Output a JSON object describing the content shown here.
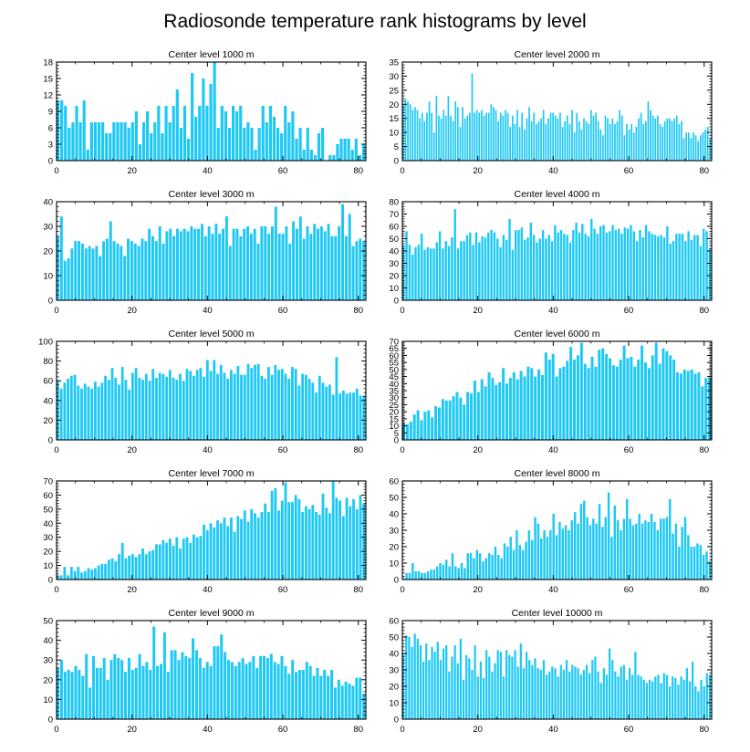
{
  "title": "Radiosonde temperature rank histograms by level",
  "chart_data": [
    {
      "type": "bar",
      "title": "Center level 1000 m",
      "ylim": [
        0,
        18
      ],
      "yticks": [
        0,
        3,
        6,
        9,
        12,
        15,
        18
      ],
      "xlim": [
        0,
        82
      ],
      "xticks": [
        0,
        20,
        40,
        60,
        80
      ],
      "xtick_labels": [
        "0",
        "20",
        "40",
        "60",
        "80"
      ],
      "values": [
        11,
        11,
        10,
        6,
        7,
        10,
        7,
        11,
        2,
        7,
        7,
        7,
        7,
        5,
        5,
        7,
        7,
        7,
        7,
        6,
        7,
        9,
        3,
        7,
        9,
        5,
        7,
        10,
        5,
        10,
        7,
        10,
        13,
        6,
        10,
        4,
        16,
        8,
        10,
        15,
        10,
        14,
        18,
        6,
        10,
        9,
        6,
        10,
        9,
        10,
        6,
        7,
        6,
        2,
        6,
        10,
        7,
        10,
        8,
        6,
        5,
        10,
        7,
        9,
        4,
        6,
        2,
        6,
        2,
        1,
        5,
        6,
        0,
        1,
        1,
        3,
        4,
        4,
        4,
        2,
        4,
        1,
        3
      ]
    },
    {
      "type": "bar",
      "title": "Center level 2000 m",
      "ylim": [
        0,
        35
      ],
      "yticks": [
        0,
        5,
        10,
        15,
        20,
        25,
        30,
        35
      ],
      "xlim": [
        0,
        82
      ],
      "xticks": [
        0,
        20,
        40,
        60,
        80
      ],
      "xtick_labels": [
        "0",
        "20",
        "40",
        "60",
        "80"
      ],
      "values": [
        20,
        22,
        21,
        20,
        18,
        19,
        18,
        15,
        17,
        14,
        17,
        21,
        17,
        10,
        23,
        16,
        15,
        18,
        16,
        23,
        16,
        14,
        21,
        19,
        12,
        19,
        15,
        16,
        17,
        31,
        17,
        18,
        17,
        18,
        16,
        17,
        17,
        20,
        19,
        18,
        14,
        17,
        16,
        18,
        17,
        12,
        16,
        13,
        18,
        12,
        17,
        11,
        15,
        19,
        14,
        17,
        13,
        14,
        15,
        18,
        13,
        15,
        17,
        17,
        16,
        15,
        17,
        12,
        14,
        16,
        13,
        18,
        10,
        17,
        14,
        11,
        15,
        14,
        13,
        18,
        16,
        17,
        14,
        11,
        9,
        16,
        15,
        13,
        15,
        13,
        14,
        18,
        16,
        9,
        13,
        11,
        13,
        10,
        12,
        15,
        17,
        13,
        14,
        21,
        18,
        16,
        15,
        16,
        13,
        12,
        14,
        15,
        15,
        14,
        15,
        16,
        13,
        14,
        8,
        10,
        10,
        8,
        10,
        9,
        7,
        9,
        10,
        11,
        12,
        8
      ]
    },
    {
      "type": "bar",
      "title": "Center level 3000 m",
      "ylim": [
        0,
        40
      ],
      "yticks": [
        0,
        10,
        20,
        30,
        40
      ],
      "xlim": [
        0,
        82
      ],
      "xticks": [
        0,
        20,
        40,
        60,
        80
      ],
      "xtick_labels": [
        "0",
        "20",
        "40",
        "60",
        "80"
      ],
      "values": [
        26,
        34,
        16,
        17,
        21,
        24,
        24,
        23,
        21,
        22,
        21,
        22,
        18,
        24,
        25,
        32,
        24,
        23,
        22,
        18,
        25,
        24,
        23,
        22,
        25,
        24,
        29,
        26,
        24,
        30,
        23,
        28,
        29,
        26,
        29,
        28,
        29,
        28,
        30,
        29,
        29,
        31,
        26,
        30,
        27,
        31,
        27,
        29,
        34,
        22,
        29,
        29,
        26,
        29,
        30,
        27,
        29,
        23,
        30,
        30,
        27,
        30,
        38,
        27,
        27,
        30,
        23,
        32,
        29,
        34,
        25,
        30,
        27,
        31,
        29,
        30,
        28,
        31,
        26,
        26,
        30,
        39,
        26,
        35,
        22,
        24,
        25,
        24
      ]
    },
    {
      "type": "bar",
      "title": "Center level 4000 m",
      "ylim": [
        0,
        80
      ],
      "yticks": [
        0,
        10,
        20,
        30,
        40,
        50,
        60,
        70,
        80
      ],
      "xlim": [
        0,
        82
      ],
      "xticks": [
        0,
        20,
        40,
        60,
        80
      ],
      "xtick_labels": [
        "0",
        "20",
        "40",
        "60",
        "80"
      ],
      "values": [
        44,
        56,
        45,
        37,
        43,
        45,
        54,
        41,
        43,
        42,
        42,
        47,
        56,
        42,
        48,
        44,
        51,
        74,
        42,
        48,
        48,
        53,
        55,
        45,
        55,
        47,
        52,
        51,
        55,
        57,
        55,
        50,
        43,
        53,
        49,
        66,
        41,
        57,
        57,
        59,
        49,
        51,
        63,
        53,
        47,
        50,
        57,
        50,
        53,
        48,
        61,
        55,
        57,
        54,
        53,
        47,
        57,
        63,
        55,
        62,
        54,
        52,
        66,
        58,
        54,
        60,
        61,
        55,
        56,
        61,
        57,
        58,
        54,
        59,
        58,
        61,
        56,
        48,
        57,
        51,
        61,
        56,
        54,
        53,
        52,
        53,
        51,
        60,
        46,
        48,
        54,
        54,
        54,
        48,
        56,
        49,
        53,
        53,
        44,
        58,
        56,
        42
      ]
    },
    {
      "type": "bar",
      "title": "Center level 5000 m",
      "ylim": [
        0,
        100
      ],
      "yticks": [
        0,
        20,
        40,
        60,
        80,
        100
      ],
      "xlim": [
        0,
        82
      ],
      "xticks": [
        0,
        20,
        40,
        60,
        80
      ],
      "xtick_labels": [
        "0",
        "20",
        "40",
        "60",
        "80"
      ],
      "values": [
        60,
        52,
        58,
        62,
        65,
        66,
        55,
        52,
        57,
        54,
        52,
        59,
        54,
        58,
        65,
        61,
        73,
        63,
        56,
        74,
        61,
        51,
        68,
        73,
        63,
        61,
        67,
        60,
        72,
        63,
        68,
        67,
        64,
        71,
        63,
        61,
        67,
        60,
        72,
        70,
        65,
        71,
        73,
        64,
        81,
        70,
        81,
        67,
        76,
        68,
        62,
        71,
        67,
        75,
        66,
        66,
        77,
        73,
        76,
        77,
        65,
        62,
        74,
        66,
        76,
        71,
        72,
        67,
        62,
        74,
        72,
        55,
        67,
        66,
        62,
        58,
        48,
        65,
        58,
        54,
        56,
        46,
        84,
        47,
        50,
        47,
        48,
        48,
        52,
        45,
        45
      ]
    },
    {
      "type": "bar",
      "title": "Center level 6000 m",
      "ylim": [
        0,
        70
      ],
      "yticks": [
        0,
        5,
        10,
        15,
        20,
        25,
        30,
        35,
        40,
        45,
        50,
        55,
        60,
        65,
        70
      ],
      "xlim": [
        0,
        82
      ],
      "xticks": [
        0,
        20,
        40,
        60,
        80
      ],
      "xtick_labels": [
        "0",
        "20",
        "40",
        "60",
        "80"
      ],
      "values": [
        12,
        11,
        13,
        18,
        21,
        14,
        20,
        21,
        16,
        24,
        23,
        29,
        28,
        28,
        31,
        34,
        30,
        25,
        34,
        33,
        42,
        34,
        43,
        38,
        48,
        44,
        39,
        41,
        51,
        40,
        44,
        48,
        43,
        49,
        45,
        52,
        51,
        45,
        50,
        46,
        62,
        57,
        61,
        45,
        51,
        52,
        56,
        66,
        57,
        60,
        69,
        54,
        51,
        59,
        52,
        64,
        65,
        61,
        58,
        53,
        52,
        57,
        67,
        58,
        59,
        52,
        57,
        67,
        55,
        51,
        60,
        69,
        54,
        65,
        63,
        60,
        57,
        48,
        47,
        50,
        49,
        50,
        47,
        48,
        38,
        44,
        44
      ]
    },
    {
      "type": "bar",
      "title": "Center level 7000 m",
      "ylim": [
        0,
        70
      ],
      "yticks": [
        0,
        10,
        20,
        30,
        40,
        50,
        60,
        70
      ],
      "xlim": [
        0,
        82
      ],
      "xticks": [
        0,
        20,
        40,
        60,
        80
      ],
      "xtick_labels": [
        "0",
        "20",
        "40",
        "60",
        "80"
      ],
      "values": [
        3,
        3,
        9,
        3,
        9,
        6,
        9,
        5,
        6,
        8,
        7,
        8,
        10,
        11,
        11,
        14,
        15,
        13,
        18,
        26,
        15,
        17,
        18,
        16,
        18,
        22,
        18,
        20,
        21,
        25,
        25,
        28,
        26,
        29,
        24,
        30,
        22,
        29,
        30,
        26,
        32,
        30,
        31,
        39,
        35,
        40,
        37,
        42,
        40,
        44,
        38,
        44,
        34,
        45,
        43,
        49,
        41,
        50,
        47,
        44,
        48,
        54,
        48,
        63,
        65,
        49,
        56,
        69,
        55,
        55,
        60,
        57,
        48,
        52,
        50,
        53,
        48,
        46,
        61,
        51,
        47,
        70,
        58,
        56,
        45,
        58,
        52,
        57,
        50,
        60,
        54
      ]
    },
    {
      "type": "bar",
      "title": "Center level 8000 m",
      "ylim": [
        0,
        60
      ],
      "yticks": [
        0,
        10,
        20,
        30,
        40,
        50,
        60
      ],
      "xlim": [
        0,
        82
      ],
      "xticks": [
        0,
        20,
        40,
        60,
        80
      ],
      "xtick_labels": [
        "0",
        "20",
        "40",
        "60",
        "80"
      ],
      "values": [
        1,
        4,
        4,
        10,
        5,
        5,
        4,
        4,
        5,
        6,
        6,
        8,
        10,
        9,
        12,
        8,
        16,
        8,
        7,
        10,
        7,
        16,
        16,
        13,
        18,
        16,
        11,
        13,
        16,
        15,
        20,
        15,
        13,
        22,
        20,
        26,
        18,
        30,
        21,
        18,
        23,
        30,
        24,
        38,
        34,
        25,
        30,
        26,
        30,
        40,
        27,
        35,
        31,
        33,
        30,
        36,
        41,
        34,
        46,
        48,
        38,
        33,
        37,
        34,
        46,
        32,
        38,
        53,
        26,
        45,
        36,
        30,
        37,
        49,
        37,
        33,
        34,
        40,
        34,
        36,
        35,
        40,
        35,
        30,
        37,
        37,
        38,
        49,
        28,
        34,
        20,
        32,
        38,
        27,
        20,
        20,
        22,
        21,
        15,
        17,
        11
      ]
    },
    {
      "type": "bar",
      "title": "Center level 9000 m",
      "ylim": [
        0,
        50
      ],
      "yticks": [
        0,
        10,
        20,
        30,
        40,
        50
      ],
      "xlim": [
        0,
        82
      ],
      "xticks": [
        0,
        20,
        40,
        60,
        80
      ],
      "xtick_labels": [
        "0",
        "20",
        "40",
        "60",
        "80"
      ],
      "values": [
        26,
        30,
        24,
        25,
        24,
        27,
        25,
        22,
        33,
        16,
        32,
        26,
        26,
        31,
        20,
        30,
        33,
        31,
        30,
        24,
        31,
        25,
        26,
        33,
        27,
        29,
        25,
        47,
        27,
        28,
        44,
        24,
        35,
        35,
        30,
        34,
        32,
        31,
        41,
        35,
        31,
        26,
        29,
        27,
        37,
        37,
        43,
        34,
        30,
        29,
        27,
        29,
        31,
        28,
        29,
        32,
        26,
        32,
        32,
        31,
        33,
        29,
        28,
        32,
        27,
        23,
        30,
        24,
        25,
        25,
        29,
        27,
        22,
        26,
        22,
        25,
        22,
        25,
        16,
        20,
        17,
        19,
        18,
        17,
        21,
        21,
        13
      ]
    },
    {
      "type": "bar",
      "title": "Center level 10000 m",
      "ylim": [
        0,
        60
      ],
      "yticks": [
        0,
        10,
        20,
        30,
        40,
        50,
        60
      ],
      "xlim": [
        0,
        82
      ],
      "xticks": [
        0,
        20,
        40,
        60,
        80
      ],
      "xtick_labels": [
        "0",
        "20",
        "40",
        "60",
        "80"
      ],
      "values": [
        40,
        51,
        50,
        44,
        52,
        49,
        45,
        35,
        46,
        36,
        44,
        41,
        47,
        36,
        43,
        45,
        29,
        38,
        45,
        34,
        49,
        24,
        39,
        37,
        30,
        45,
        26,
        35,
        25,
        42,
        38,
        29,
        34,
        42,
        41,
        26,
        42,
        39,
        38,
        42,
        32,
        46,
        31,
        41,
        36,
        33,
        37,
        31,
        30,
        36,
        27,
        29,
        32,
        31,
        26,
        33,
        30,
        36,
        29,
        33,
        32,
        31,
        27,
        30,
        33,
        28,
        36,
        38,
        29,
        22,
        31,
        27,
        43,
        36,
        29,
        26,
        32,
        33,
        24,
        31,
        27,
        41,
        27,
        26,
        24,
        22,
        24,
        23,
        26,
        27,
        22,
        28,
        27,
        20,
        26,
        25,
        21,
        26,
        24,
        31,
        23,
        35,
        20,
        17,
        24,
        20,
        28,
        27
      ]
    }
  ]
}
